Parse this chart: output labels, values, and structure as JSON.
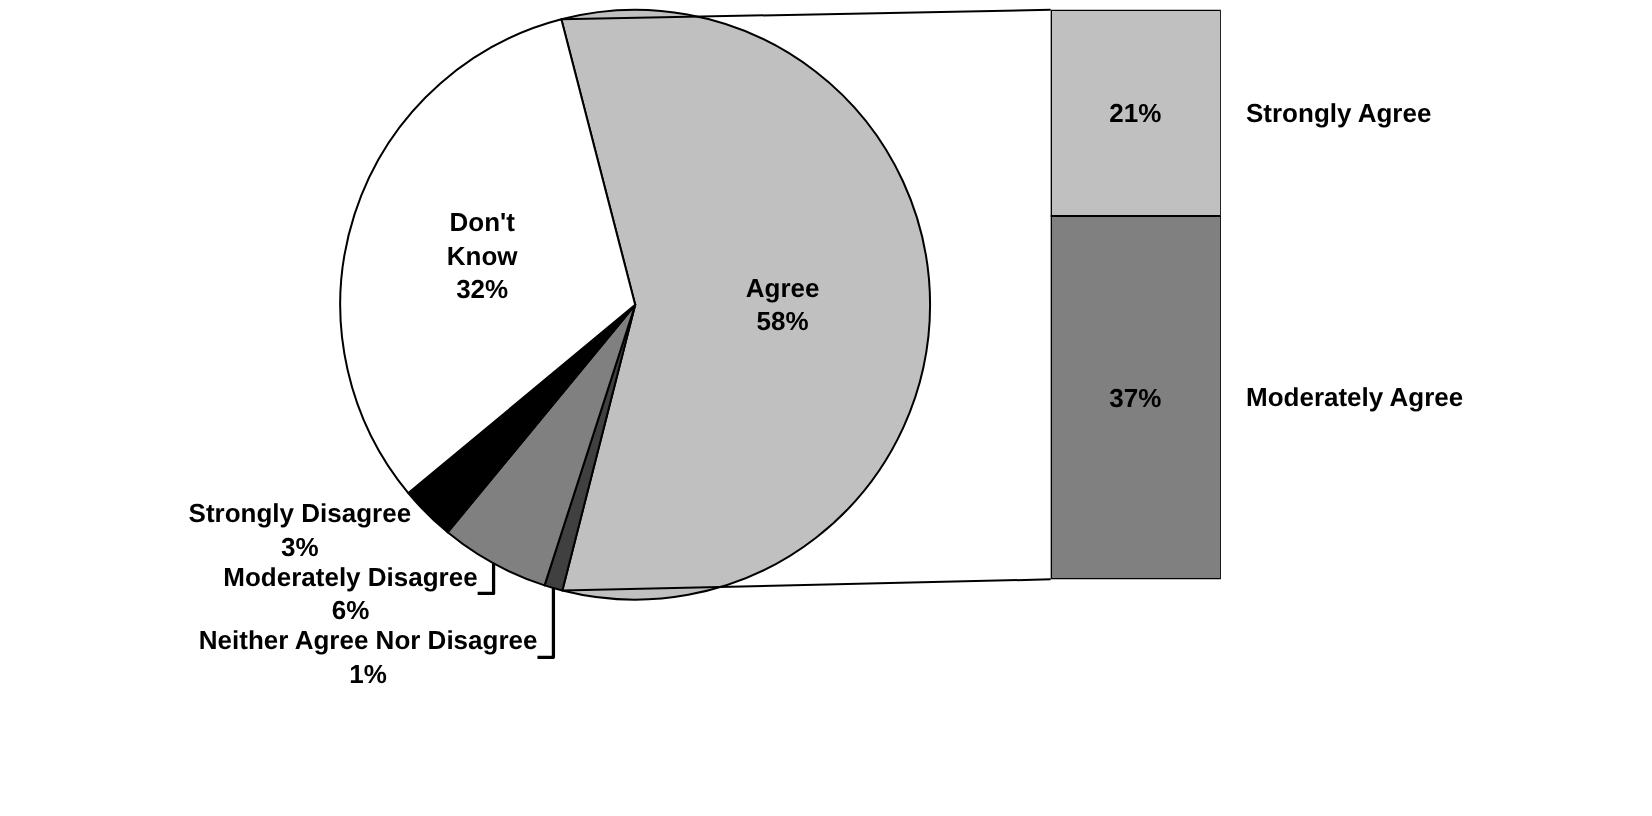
{
  "chart_data": [
    {
      "type": "pie",
      "categories": [
        "Agree",
        "Neither Agree Nor Disagree",
        "Moderately Disagree",
        "Strongly Disagree",
        "Don't Know"
      ],
      "values": [
        58,
        1,
        6,
        3,
        32
      ],
      "value_labels": [
        "58%",
        "1%",
        "6%",
        "3%",
        "32%"
      ],
      "colors": [
        "#c0c0c0",
        "#404040",
        "#808080",
        "#000000",
        "#ffffff"
      ]
    },
    {
      "type": "bar",
      "stacked": true,
      "categories": [
        null
      ],
      "series": [
        {
          "name": "Moderately Agree",
          "color": "#808080",
          "values": [
            37
          ],
          "value_labels": [
            "37%"
          ]
        },
        {
          "name": "Strongly Agree",
          "color": "#c0c0c0",
          "values": [
            21
          ],
          "value_labels": [
            "21%"
          ]
        }
      ]
    }
  ]
}
